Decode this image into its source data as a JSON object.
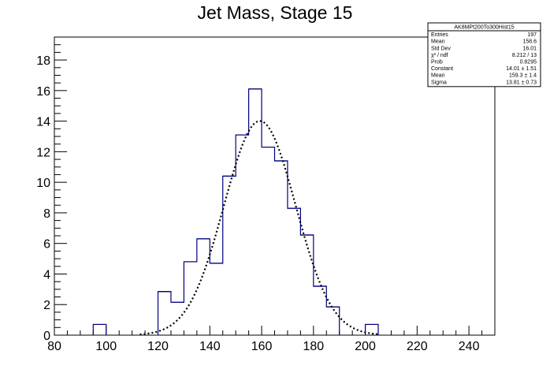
{
  "chart_data": {
    "type": "histogram",
    "title": "Jet Mass, Stage 15",
    "xlabel": "",
    "ylabel": "",
    "xlim": [
      80,
      250
    ],
    "ylim": [
      0,
      19.5
    ],
    "x_ticks": [
      80,
      100,
      120,
      140,
      160,
      180,
      200,
      220,
      240
    ],
    "y_ticks": [
      0,
      2,
      4,
      6,
      8,
      10,
      12,
      14,
      16,
      18
    ],
    "bin_width": 5,
    "bins": [
      {
        "x0": 95,
        "x1": 100,
        "value": 0.7
      },
      {
        "x0": 120,
        "x1": 125,
        "value": 2.85
      },
      {
        "x0": 125,
        "x1": 130,
        "value": 2.15
      },
      {
        "x0": 130,
        "x1": 135,
        "value": 4.8
      },
      {
        "x0": 135,
        "x1": 140,
        "value": 6.3
      },
      {
        "x0": 140,
        "x1": 145,
        "value": 4.7
      },
      {
        "x0": 145,
        "x1": 150,
        "value": 10.4
      },
      {
        "x0": 150,
        "x1": 155,
        "value": 13.1
      },
      {
        "x0": 155,
        "x1": 160,
        "value": 16.1
      },
      {
        "x0": 160,
        "x1": 165,
        "value": 12.3
      },
      {
        "x0": 165,
        "x1": 170,
        "value": 11.4
      },
      {
        "x0": 170,
        "x1": 175,
        "value": 8.3
      },
      {
        "x0": 175,
        "x1": 180,
        "value": 6.55
      },
      {
        "x0": 180,
        "x1": 185,
        "value": 3.2
      },
      {
        "x0": 185,
        "x1": 190,
        "value": 1.85
      },
      {
        "x0": 200,
        "x1": 205,
        "value": 0.7
      }
    ],
    "fit": {
      "type": "gaussian",
      "constant": 14.01,
      "mean": 159.3,
      "sigma": 13.81
    },
    "colors": {
      "histogram": "#000080",
      "fit": "#000000",
      "frame": "#000000"
    },
    "grid": false,
    "legend": "top-right"
  },
  "stats_box": {
    "title": "AK8MPt200To300Hist15",
    "rows": [
      {
        "label": "Entries",
        "value": "197"
      },
      {
        "label": "Mean",
        "value": "158.6"
      },
      {
        "label": "Std Dev",
        "value": "16.01"
      },
      {
        "label": "χ² / ndf",
        "value": "8.212 / 13"
      },
      {
        "label": "Prob",
        "value": "0.8295"
      },
      {
        "label": "Constant",
        "value": "14.01 ± 1.51"
      },
      {
        "label": "Mean",
        "value": "159.3 ± 1.4"
      },
      {
        "label": "Sigma",
        "value": "13.81 ± 0.73"
      }
    ]
  }
}
